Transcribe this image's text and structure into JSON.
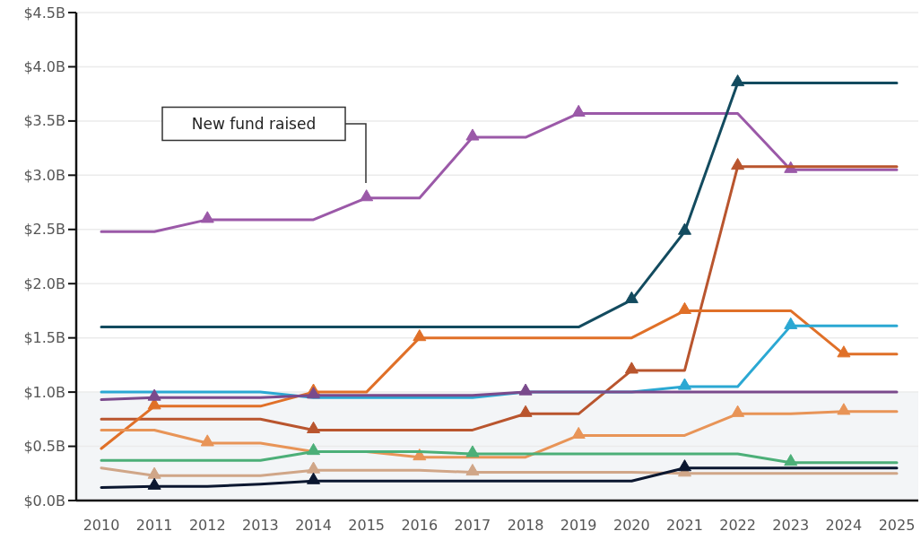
{
  "chart_data": {
    "type": "line",
    "categories": [
      "2010",
      "2011",
      "2012",
      "2013",
      "2014",
      "2015",
      "2016",
      "2017",
      "2018",
      "2019",
      "2020",
      "2021",
      "2022",
      "2023",
      "2024",
      "2025"
    ],
    "ylim": [
      0,
      4.5
    ],
    "yticks": [
      {
        "value": 0,
        "label": "$0.0B"
      },
      {
        "value": 0.5,
        "label": "$0.5B"
      },
      {
        "value": 1,
        "label": "$1.0B"
      },
      {
        "value": 1.5,
        "label": "$1.5B"
      },
      {
        "value": 2,
        "label": "$2.0B"
      },
      {
        "value": 2.5,
        "label": "$2.5B"
      },
      {
        "value": 3,
        "label": "$3.0B"
      },
      {
        "value": 3.5,
        "label": "$3.5B"
      },
      {
        "value": 4,
        "label": "$4.0B"
      },
      {
        "value": 4.5,
        "label": "$4.5B"
      }
    ],
    "grid": "y",
    "bands": [
      {
        "axis": "y",
        "from": 0,
        "to": 1.0,
        "color": "#f3f5f7"
      }
    ],
    "annotations": [
      "New fund raised"
    ],
    "series": [
      {
        "color": "#9b59a8",
        "values": [
          2.48,
          2.48,
          2.59,
          2.59,
          2.59,
          2.79,
          2.79,
          3.35,
          3.35,
          3.57,
          3.57,
          3.57,
          3.57,
          3.05,
          3.05,
          3.05
        ]
      },
      {
        "color": "#134b5f",
        "values": [
          1.6,
          1.6,
          1.6,
          1.6,
          1.6,
          1.6,
          1.6,
          1.6,
          1.6,
          1.6,
          1.85,
          2.48,
          3.85,
          3.85,
          3.85,
          3.85
        ]
      },
      {
        "color": "#b9552e",
        "values": [
          0.75,
          0.75,
          0.75,
          0.75,
          0.65,
          0.65,
          0.65,
          0.65,
          0.8,
          0.8,
          1.2,
          1.2,
          3.08,
          3.08,
          3.08,
          3.08
        ]
      },
      {
        "color": "#e07028",
        "values": [
          0.48,
          0.87,
          0.87,
          0.87,
          1.0,
          1.0,
          1.5,
          1.5,
          1.5,
          1.5,
          1.5,
          1.75,
          1.75,
          1.75,
          1.35,
          1.35
        ]
      },
      {
        "color": "#2ba8d3",
        "values": [
          1.0,
          1.0,
          1.0,
          1.0,
          0.95,
          0.95,
          0.95,
          0.95,
          1.0,
          1.0,
          1.0,
          1.05,
          1.05,
          1.61,
          1.61,
          1.61
        ]
      },
      {
        "color": "#7a4a8c",
        "values": [
          0.93,
          0.95,
          0.95,
          0.95,
          0.97,
          0.97,
          0.97,
          0.97,
          1.0,
          1.0,
          1.0,
          1.0,
          1.0,
          1.0,
          1.0,
          1.0
        ]
      },
      {
        "color": "#e89457",
        "values": [
          0.65,
          0.65,
          0.53,
          0.53,
          0.45,
          0.45,
          0.4,
          0.4,
          0.4,
          0.6,
          0.6,
          0.6,
          0.8,
          0.8,
          0.82,
          0.82
        ]
      },
      {
        "color": "#4caf78",
        "values": [
          0.37,
          0.37,
          0.37,
          0.37,
          0.45,
          0.45,
          0.45,
          0.43,
          0.43,
          0.43,
          0.43,
          0.43,
          0.43,
          0.35,
          0.35,
          0.35
        ]
      },
      {
        "color": "#d0a688",
        "values": [
          0.3,
          0.23,
          0.23,
          0.23,
          0.28,
          0.28,
          0.28,
          0.26,
          0.26,
          0.26,
          0.26,
          0.25,
          0.25,
          0.25,
          0.25,
          0.25
        ]
      },
      {
        "color": "#0b1730",
        "values": [
          0.12,
          0.13,
          0.13,
          0.15,
          0.18,
          0.18,
          0.18,
          0.18,
          0.18,
          0.18,
          0.18,
          0.3,
          0.3,
          0.3,
          0.3,
          0.3
        ]
      },
      {
        "type": "scatter",
        "marker": "triangle",
        "color": "#9b59a8",
        "values": [
          null,
          null,
          2.59,
          null,
          null,
          2.79,
          null,
          3.35,
          null,
          3.57,
          null,
          null,
          null,
          3.05,
          null,
          null
        ]
      },
      {
        "type": "scatter",
        "marker": "triangle",
        "color": "#134b5f",
        "values": [
          null,
          null,
          null,
          null,
          null,
          null,
          null,
          null,
          null,
          null,
          1.85,
          2.48,
          3.85,
          null,
          null,
          null
        ]
      },
      {
        "type": "scatter",
        "marker": "triangle",
        "color": "#b9552e",
        "values": [
          null,
          null,
          null,
          null,
          0.65,
          null,
          null,
          null,
          0.8,
          null,
          1.2,
          null,
          3.08,
          null,
          null,
          null
        ]
      },
      {
        "type": "scatter",
        "marker": "triangle",
        "color": "#e07028",
        "values": [
          null,
          0.87,
          null,
          null,
          1.0,
          null,
          1.5,
          null,
          null,
          null,
          null,
          1.75,
          null,
          null,
          1.35,
          null
        ]
      },
      {
        "type": "scatter",
        "marker": "triangle",
        "color": "#2ba8d3",
        "values": [
          null,
          null,
          null,
          null,
          null,
          null,
          null,
          null,
          null,
          null,
          null,
          1.05,
          null,
          1.61,
          null,
          null
        ]
      },
      {
        "type": "scatter",
        "marker": "triangle",
        "color": "#7a4a8c",
        "values": [
          null,
          0.95,
          null,
          null,
          0.97,
          null,
          null,
          null,
          1.0,
          null,
          null,
          null,
          null,
          null,
          null,
          null
        ]
      },
      {
        "type": "scatter",
        "marker": "triangle",
        "color": "#e89457",
        "values": [
          null,
          null,
          0.53,
          null,
          null,
          null,
          0.4,
          null,
          null,
          0.6,
          null,
          null,
          0.8,
          null,
          0.82,
          null
        ]
      },
      {
        "type": "scatter",
        "marker": "triangle",
        "color": "#4caf78",
        "values": [
          null,
          null,
          null,
          null,
          0.45,
          null,
          null,
          0.43,
          null,
          null,
          null,
          null,
          null,
          0.35,
          null,
          null
        ]
      },
      {
        "type": "scatter",
        "marker": "triangle",
        "color": "#d0a688",
        "values": [
          null,
          0.23,
          null,
          null,
          0.28,
          null,
          null,
          0.26,
          null,
          null,
          null,
          0.25,
          null,
          null,
          null,
          null
        ]
      },
      {
        "type": "scatter",
        "marker": "triangle",
        "color": "#0b1730",
        "values": [
          null,
          0.13,
          null,
          null,
          0.18,
          null,
          null,
          null,
          null,
          null,
          null,
          0.3,
          null,
          null,
          null,
          null
        ]
      }
    ]
  }
}
